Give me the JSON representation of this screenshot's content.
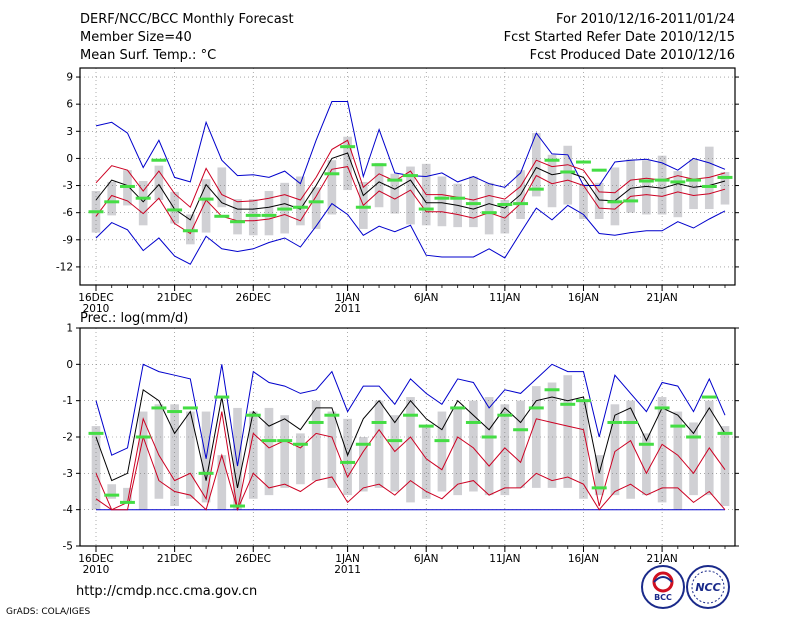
{
  "header": {
    "left": [
      "DERF/NCC/BCC Monthly Forecast",
      "Member Size=40",
      "Mean Surf. Temp.: °C"
    ],
    "right": [
      "For 2010/12/16-2011/01/24",
      "Fcst Started Refer Date 2010/12/15",
      "Fcst Produced Date 2010/12/16"
    ]
  },
  "colors": {
    "box": "#d0d0d4",
    "mean": "#000000",
    "spread": "#cc0022",
    "extreme": "#0000cc",
    "median": "#44dd44",
    "grid": "#777777"
  },
  "footer": {
    "url": "http://cmdp.ncc.cma.gov.cn",
    "credit": "GrADS: COLA/IGES",
    "logo_left": "BCC",
    "logo_right": "NCC"
  },
  "chart_data": [
    {
      "type": "boxplot",
      "title": "Mean Surf. Temp.: °C",
      "xlabel": "",
      "ylabel": "°C",
      "ylim": [
        -14,
        10
      ],
      "yticks": [
        9,
        6,
        3,
        0,
        -3,
        -6,
        -9,
        -12
      ],
      "xtick_labels": [
        {
          "day": 0,
          "label": "16DEC",
          "sub": "2010"
        },
        {
          "day": 5,
          "label": "21DEC",
          "sub": ""
        },
        {
          "day": 10,
          "label": "26DEC",
          "sub": ""
        },
        {
          "day": 16,
          "label": "1JAN",
          "sub": "2011"
        },
        {
          "day": 21,
          "label": "6JAN",
          "sub": ""
        },
        {
          "day": 26,
          "label": "11JAN",
          "sub": ""
        },
        {
          "day": 31,
          "label": "16JAN",
          "sub": ""
        },
        {
          "day": 36,
          "label": "21JAN",
          "sub": ""
        }
      ],
      "box_low": [
        -8.2,
        -6.3,
        -5.2,
        -7.4,
        -4.6,
        -7.2,
        -9.5,
        -8.2,
        -5.4,
        -8.4,
        -8.5,
        -8.5,
        -8.3,
        -7.4,
        -7.8,
        -6.2,
        -3.5,
        -7.8,
        -5.4,
        -6.1,
        -7.3,
        -7.4,
        -7.5,
        -7.6,
        -7.6,
        -8.4,
        -8.3,
        -6.7,
        -4.2,
        -5.4,
        -5.1,
        -6.7,
        -6.7,
        -7.4,
        -6.0,
        -6.2,
        -6.2,
        -6.5,
        -5.6,
        -5.6,
        -5.1
      ],
      "box_high": [
        -3.6,
        -2.6,
        -1.3,
        -2.5,
        -0.8,
        -3.7,
        -6.2,
        -2.3,
        -1.0,
        -4.5,
        -4.5,
        -3.6,
        -2.7,
        -2.0,
        -3.2,
        -0.2,
        2.4,
        -2.6,
        -0.5,
        -1.7,
        -0.9,
        -0.6,
        -2.0,
        -2.8,
        -2.0,
        -2.7,
        -4.6,
        -1.3,
        2.8,
        0.4,
        1.4,
        -2.8,
        -2.7,
        -1.0,
        -0.1,
        -0.2,
        0.3,
        -1.4,
        -0.1,
        1.3,
        -1.5
      ],
      "median": [
        -5.9,
        -4.8,
        -3.1,
        -4.4,
        -0.2,
        -5.7,
        -8.0,
        -4.5,
        -6.4,
        -7.0,
        -6.3,
        -6.3,
        -5.6,
        -5.4,
        -4.8,
        -1.7,
        1.3,
        -5.4,
        -0.7,
        -2.4,
        -1.9,
        -5.6,
        -4.4,
        -4.4,
        -5.0,
        -6.0,
        -5.1,
        -5.0,
        -3.4,
        -0.2,
        -1.5,
        -0.4,
        -1.3,
        -4.8,
        -4.7,
        -2.5,
        -2.4,
        -2.6,
        -2.4,
        -3.1,
        -2.1
      ],
      "mean": [
        -4.6,
        -2.4,
        -3.0,
        -4.8,
        -2.9,
        -5.6,
        -6.8,
        -2.9,
        -4.9,
        -5.6,
        -5.6,
        -5.4,
        -5.0,
        -5.6,
        -3.0,
        0.0,
        0.6,
        -4.1,
        -2.6,
        -3.4,
        -2.4,
        -4.9,
        -4.9,
        -5.2,
        -5.6,
        -5.0,
        -5.5,
        -4.0,
        -1.0,
        -1.8,
        -1.5,
        -2.1,
        -4.6,
        -4.7,
        -3.3,
        -3.1,
        -3.3,
        -2.8,
        -3.2,
        -3.0,
        -2.5
      ],
      "mean_upper": [
        -2.7,
        -0.8,
        -1.3,
        -3.6,
        -1.4,
        -3.9,
        -5.4,
        -1.1,
        -4.0,
        -4.8,
        -4.7,
        -4.4,
        -4.0,
        -4.6,
        -2.1,
        1.0,
        2.0,
        -3.2,
        -1.7,
        -2.5,
        -1.4,
        -4.0,
        -4.0,
        -4.3,
        -4.6,
        -4.1,
        -4.5,
        -3.1,
        -0.2,
        -0.9,
        -0.7,
        -1.3,
        -3.7,
        -3.8,
        -2.4,
        -2.2,
        -2.4,
        -1.9,
        -2.3,
        -2.1,
        -1.6
      ],
      "mean_lower": [
        -6.4,
        -4.1,
        -4.7,
        -6.1,
        -4.4,
        -7.2,
        -8.3,
        -4.6,
        -6.4,
        -6.9,
        -6.9,
        -6.7,
        -6.2,
        -6.9,
        -4.2,
        -1.2,
        -0.9,
        -5.2,
        -3.6,
        -4.5,
        -3.5,
        -5.9,
        -5.9,
        -6.2,
        -6.6,
        -6.0,
        -6.6,
        -5.0,
        -1.9,
        -2.8,
        -2.4,
        -3.0,
        -5.5,
        -5.6,
        -4.2,
        -4.0,
        -4.2,
        -3.7,
        -4.1,
        -3.9,
        -3.4
      ],
      "max": [
        3.6,
        4.0,
        2.8,
        -1.0,
        2.0,
        -2.1,
        -2.6,
        4.0,
        -0.2,
        -1.9,
        -1.8,
        -2.1,
        -1.4,
        -2.8,
        2.0,
        6.3,
        6.3,
        -2.0,
        3.2,
        -1.6,
        -1.9,
        -2.0,
        -1.6,
        -2.6,
        -2.0,
        -2.8,
        -3.2,
        -1.6,
        2.8,
        0.5,
        0.4,
        -3.0,
        -3.0,
        -0.4,
        -0.2,
        -0.1,
        -0.5,
        -1.3,
        0.0,
        -0.5,
        -1.2
      ],
      "min": [
        -8.8,
        -7.1,
        -7.9,
        -10.2,
        -8.8,
        -10.8,
        -11.7,
        -8.6,
        -10.0,
        -10.3,
        -10.0,
        -9.3,
        -8.8,
        -9.8,
        -7.5,
        -5.0,
        -6.2,
        -8.5,
        -7.5,
        -8.1,
        -7.4,
        -10.7,
        -10.9,
        -10.9,
        -10.9,
        -10.0,
        -11.0,
        -8.2,
        -5.5,
        -6.8,
        -5.2,
        -6.2,
        -8.3,
        -8.5,
        -8.2,
        -8.0,
        -8.0,
        -7.0,
        -7.7,
        -6.7,
        -5.8
      ]
    },
    {
      "type": "boxplot",
      "title": "Prec.: log(mm/d)",
      "xlabel": "",
      "ylabel": "log(mm/d)",
      "ylim": [
        -5,
        1
      ],
      "yticks": [
        1,
        0,
        -1,
        -2,
        -3,
        -4,
        -5
      ],
      "xtick_labels": [
        {
          "day": 0,
          "label": "16DEC",
          "sub": "2010"
        },
        {
          "day": 5,
          "label": "21DEC",
          "sub": ""
        },
        {
          "day": 10,
          "label": "26DEC",
          "sub": ""
        },
        {
          "day": 16,
          "label": "1JAN",
          "sub": "2011"
        },
        {
          "day": 21,
          "label": "6JAN",
          "sub": ""
        },
        {
          "day": 26,
          "label": "11JAN",
          "sub": ""
        },
        {
          "day": 31,
          "label": "16JAN",
          "sub": ""
        },
        {
          "day": 36,
          "label": "21JAN",
          "sub": ""
        }
      ],
      "box_low": [
        -4.0,
        -3.7,
        -3.8,
        -4.0,
        -3.7,
        -3.9,
        -3.7,
        -3.8,
        -4.0,
        -4.0,
        -3.7,
        -3.6,
        -3.4,
        -3.3,
        -3.2,
        -3.4,
        -3.6,
        -3.5,
        -3.4,
        -3.5,
        -3.8,
        -3.7,
        -3.5,
        -3.6,
        -3.5,
        -3.6,
        -3.6,
        -3.4,
        -3.4,
        -3.4,
        -3.4,
        -3.7,
        -3.6,
        -3.6,
        -3.7,
        -3.6,
        -3.8,
        -4.0,
        -3.6,
        -3.6,
        -3.9
      ],
      "box_high": [
        -1.7,
        -3.3,
        -3.4,
        -1.3,
        -1.1,
        -1.1,
        -1.3,
        -1.3,
        -2.5,
        -1.2,
        -1.3,
        -1.2,
        -1.4,
        -1.9,
        -1.0,
        -1.3,
        -1.5,
        -2.0,
        -1.0,
        -1.4,
        -0.9,
        -1.7,
        -1.3,
        -1.2,
        -1.0,
        -0.9,
        -1.1,
        -1.0,
        -0.6,
        -0.5,
        -0.3,
        -1.0,
        -2.5,
        -1.1,
        -1.0,
        -1.9,
        -0.9,
        -1.3,
        -1.6,
        -1.0,
        -1.7
      ],
      "median": [
        -1.9,
        -3.6,
        -3.8,
        -2.0,
        -1.2,
        -1.3,
        -1.2,
        -3.0,
        -0.9,
        -3.9,
        -1.4,
        -2.1,
        -2.1,
        -2.2,
        -1.6,
        -1.4,
        -2.7,
        -2.2,
        -1.6,
        -2.1,
        -1.4,
        -1.7,
        -2.1,
        -1.2,
        -1.6,
        -2.0,
        -1.4,
        -1.8,
        -1.2,
        -0.7,
        -1.1,
        -1.0,
        -3.4,
        -1.6,
        -1.6,
        -2.2,
        -1.2,
        -1.7,
        -2.0,
        -0.9,
        -1.9
      ],
      "mean": [
        -2.0,
        -3.2,
        -3.0,
        -0.7,
        -1.0,
        -1.9,
        -1.3,
        -3.2,
        -0.9,
        -3.4,
        -1.3,
        -1.7,
        -1.5,
        -1.8,
        -1.2,
        -1.2,
        -2.5,
        -1.5,
        -1.0,
        -1.6,
        -1.0,
        -1.5,
        -1.8,
        -1.0,
        -1.4,
        -1.8,
        -1.2,
        -1.6,
        -1.0,
        -0.9,
        -1.0,
        -0.9,
        -3.0,
        -1.4,
        -1.2,
        -2.1,
        -1.2,
        -1.4,
        -1.9,
        -1.2,
        -1.9
      ],
      "mean_upper": [
        -3.0,
        -4.0,
        -3.8,
        -1.5,
        -2.5,
        -3.2,
        -3.0,
        -3.7,
        -1.3,
        -4.0,
        -1.9,
        -2.3,
        -2.1,
        -2.3,
        -1.9,
        -2.0,
        -3.1,
        -2.4,
        -1.8,
        -2.4,
        -2.0,
        -2.6,
        -2.9,
        -2.0,
        -2.3,
        -2.8,
        -2.3,
        -2.7,
        -1.5,
        -1.6,
        -1.7,
        -1.8,
        -3.9,
        -2.4,
        -2.1,
        -3.0,
        -2.2,
        -2.5,
        -3.0,
        -2.3,
        -2.9
      ],
      "mean_lower": [
        -3.7,
        -4.0,
        -4.0,
        -2.0,
        -3.2,
        -3.5,
        -3.6,
        -4.0,
        -2.5,
        -4.0,
        -3.0,
        -3.4,
        -3.3,
        -3.5,
        -3.2,
        -3.1,
        -3.8,
        -3.4,
        -3.3,
        -3.6,
        -3.2,
        -3.5,
        -3.7,
        -3.3,
        -3.2,
        -3.6,
        -3.4,
        -3.4,
        -3.0,
        -3.2,
        -3.1,
        -3.3,
        -4.0,
        -3.5,
        -3.3,
        -3.6,
        -3.4,
        -3.4,
        -3.8,
        -3.5,
        -4.0
      ],
      "max": [
        -1.0,
        -2.5,
        -2.3,
        0.0,
        -0.2,
        -0.3,
        -0.4,
        -2.6,
        0.0,
        -2.8,
        -0.2,
        -0.5,
        -0.6,
        -0.8,
        -0.7,
        -0.2,
        -1.3,
        -0.6,
        -0.6,
        -1.1,
        -0.4,
        -0.8,
        -1.1,
        -0.4,
        -0.5,
        -1.2,
        -0.7,
        -0.8,
        -0.4,
        0.0,
        -0.2,
        -0.2,
        -2.0,
        -0.3,
        -0.8,
        -1.3,
        -0.5,
        -0.6,
        -1.3,
        -0.4,
        -1.4
      ],
      "min": [
        -4.0,
        -4.0,
        -4.0,
        -4.0,
        -4.0,
        -4.0,
        -4.0,
        -4.0,
        -4.0,
        -4.0,
        -4.0,
        -4.0,
        -4.0,
        -4.0,
        -4.0,
        -4.0,
        -4.0,
        -4.0,
        -4.0,
        -4.0,
        -4.0,
        -4.0,
        -4.0,
        -4.0,
        -4.0,
        -4.0,
        -4.0,
        -4.0,
        -4.0,
        -4.0,
        -4.0,
        -4.0,
        -4.0,
        -4.0,
        -4.0,
        -4.0,
        -4.0,
        -4.0,
        -4.0,
        -4.0,
        -4.0
      ]
    }
  ]
}
